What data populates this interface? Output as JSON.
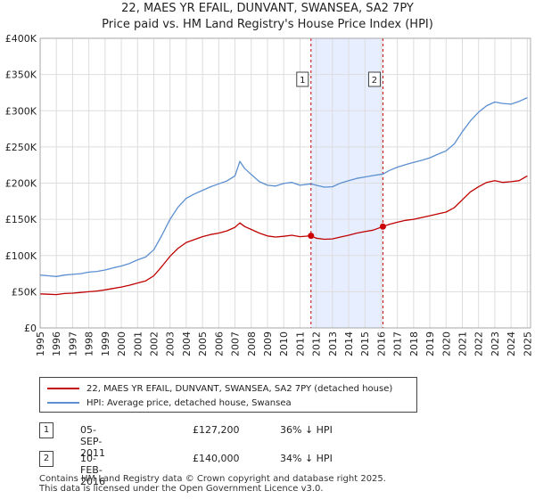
{
  "title_line1": "22, MAES YR EFAIL, DUNVANT, SWANSEA, SA2 7PY",
  "title_line2": "Price paid vs. HM Land Registry's House Price Index (HPI)",
  "colors": {
    "property": "#c00000",
    "hpi": "#5b8fd0",
    "highlight": "#e6eeff",
    "sale_marker": "#cc0000"
  },
  "chart_data": {
    "type": "line",
    "xlim": [
      1995,
      2025.2
    ],
    "ylim": [
      0,
      400000
    ],
    "y_ticks": [
      0,
      50000,
      100000,
      150000,
      200000,
      250000,
      300000,
      350000,
      400000
    ],
    "y_tick_labels": [
      "£0",
      "£50K",
      "£100K",
      "£150K",
      "£200K",
      "£250K",
      "£300K",
      "£350K",
      "£400K"
    ],
    "x_tick_labels": [
      "1995",
      "1996",
      "1997",
      "1998",
      "1999",
      "2000",
      "2001",
      "2002",
      "2003",
      "2004",
      "2005",
      "2006",
      "2007",
      "2008",
      "2009",
      "2010",
      "2011",
      "2012",
      "2013",
      "2014",
      "2015",
      "2016",
      "2017",
      "2018",
      "2019",
      "2020",
      "2021",
      "2022",
      "2023",
      "2024",
      "2025"
    ],
    "highlight_range": [
      2011.68,
      2016.11
    ],
    "series": [
      {
        "name": "22, MAES YR EFAIL, DUNVANT, SWANSEA, SA2 7PY (detached house)",
        "x": [
          1995.0,
          1995.5,
          1996.0,
          1996.5,
          1997.0,
          1997.5,
          1998.0,
          1998.5,
          1999.0,
          1999.5,
          2000.0,
          2000.5,
          2001.0,
          2001.5,
          2002.0,
          2002.5,
          2003.0,
          2003.5,
          2004.0,
          2004.5,
          2005.0,
          2005.5,
          2006.0,
          2006.5,
          2007.0,
          2007.3,
          2007.6,
          2008.0,
          2008.5,
          2009.0,
          2009.5,
          2010.0,
          2010.5,
          2011.0,
          2011.68,
          2012.0,
          2012.5,
          2013.0,
          2013.5,
          2014.0,
          2014.5,
          2015.0,
          2015.5,
          2016.11,
          2016.5,
          2017.0,
          2017.5,
          2018.0,
          2018.5,
          2019.0,
          2019.5,
          2020.0,
          2020.5,
          2021.0,
          2021.5,
          2022.0,
          2022.5,
          2023.0,
          2023.5,
          2024.0,
          2024.5,
          2025.0
        ],
        "values": [
          47000,
          46500,
          46000,
          47500,
          48000,
          49000,
          50000,
          51000,
          52500,
          54500,
          56500,
          59000,
          62000,
          65000,
          72000,
          85000,
          99000,
          110000,
          118000,
          122000,
          126000,
          129000,
          131000,
          134000,
          139000,
          145000,
          140000,
          136000,
          131000,
          127000,
          125500,
          126500,
          128000,
          126000,
          127200,
          124000,
          122500,
          123000,
          125500,
          128000,
          131000,
          133000,
          135000,
          140000,
          143000,
          146000,
          148500,
          150000,
          152500,
          155000,
          157500,
          160000,
          166000,
          177000,
          188000,
          195000,
          201000,
          203500,
          201000,
          202000,
          203500,
          210000
        ]
      },
      {
        "name": "HPI: Average price, detached house, Swansea",
        "x": [
          1995.0,
          1995.5,
          1996.0,
          1996.5,
          1997.0,
          1997.5,
          1998.0,
          1998.5,
          1999.0,
          1999.5,
          2000.0,
          2000.5,
          2001.0,
          2001.5,
          2002.0,
          2002.5,
          2003.0,
          2003.5,
          2004.0,
          2004.5,
          2005.0,
          2005.5,
          2006.0,
          2006.5,
          2007.0,
          2007.3,
          2007.6,
          2008.0,
          2008.5,
          2009.0,
          2009.5,
          2010.0,
          2010.5,
          2011.0,
          2011.68,
          2012.0,
          2012.5,
          2013.0,
          2013.5,
          2014.0,
          2014.5,
          2015.0,
          2015.5,
          2016.11,
          2016.5,
          2017.0,
          2017.5,
          2018.0,
          2018.5,
          2019.0,
          2019.5,
          2020.0,
          2020.5,
          2021.0,
          2021.5,
          2022.0,
          2022.5,
          2023.0,
          2023.5,
          2024.0,
          2024.5,
          2025.0
        ],
        "values": [
          73000,
          72000,
          71000,
          73000,
          74000,
          75000,
          77000,
          78000,
          80000,
          83000,
          85500,
          89000,
          94000,
          98000,
          108000,
          128000,
          150000,
          167000,
          179000,
          185000,
          190000,
          195000,
          199000,
          203000,
          210000,
          230000,
          220000,
          212000,
          202000,
          197000,
          196000,
          199500,
          201000,
          197000,
          199000,
          197000,
          194500,
          195000,
          200000,
          203500,
          206500,
          208500,
          210500,
          212500,
          217500,
          222000,
          225500,
          228500,
          231500,
          235000,
          240000,
          244500,
          254000,
          271000,
          286000,
          298000,
          307000,
          312000,
          310000,
          309000,
          313000,
          318000
        ]
      }
    ],
    "sales": [
      {
        "label": "1",
        "x": 2011.68,
        "value": 127200,
        "date": "05-SEP-2011",
        "price": "£127,200",
        "hpi_diff": "36% ↓ HPI"
      },
      {
        "label": "2",
        "x": 2016.11,
        "value": 140000,
        "date": "10-FEB-2016",
        "price": "£140,000",
        "hpi_diff": "34% ↓ HPI"
      }
    ]
  },
  "legend": {
    "property_label": "22, MAES YR EFAIL, DUNVANT, SWANSEA, SA2 7PY (detached house)",
    "hpi_label": "HPI: Average price, detached house, Swansea"
  },
  "footer": {
    "line1": "Contains HM Land Registry data © Crown copyright and database right 2025.",
    "line2": "This data is licensed under the Open Government Licence v3.0."
  }
}
